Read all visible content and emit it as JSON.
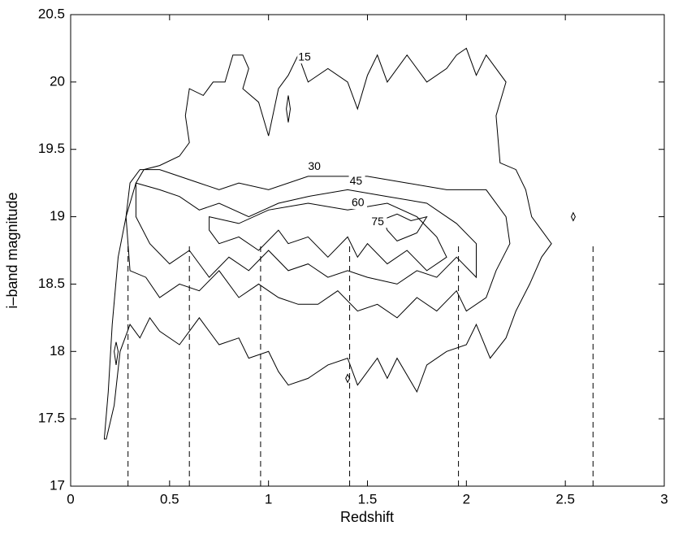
{
  "chart_data": {
    "type": "contour",
    "xlabel": "Redshift",
    "ylabel": "i–band magnitude",
    "xlim": [
      0,
      3
    ],
    "ylim": [
      17,
      20.5
    ],
    "xticks": [
      0,
      0.5,
      1,
      1.5,
      2,
      2.5,
      3
    ],
    "yticks": [
      17,
      17.5,
      18,
      18.5,
      19,
      19.5,
      20,
      20.5
    ],
    "color": "#000000",
    "contours": [
      {
        "level": 15,
        "label_x": 1.15,
        "label_y": 20.18,
        "paths": [
          {
            "x": [
              0.17,
              0.19,
              0.21,
              0.24,
              0.28,
              0.33,
              0.37,
              0.45,
              0.55,
              0.6,
              0.58,
              0.6,
              0.67,
              0.72,
              0.78,
              0.82,
              0.87,
              0.9,
              0.87,
              0.95,
              1.0,
              1.05,
              1.1,
              1.15,
              1.2,
              1.3,
              1.4,
              1.45,
              1.5,
              1.55,
              1.6,
              1.7,
              1.8,
              1.9,
              1.95,
              2.0,
              2.05,
              2.1,
              2.2,
              2.15,
              2.17,
              2.25,
              2.3,
              2.33,
              2.38,
              2.43,
              2.38,
              2.32,
              2.25,
              2.2,
              2.12,
              2.05,
              2.0,
              1.9,
              1.8,
              1.75,
              1.65,
              1.6,
              1.55,
              1.45,
              1.4,
              1.3,
              1.2,
              1.1,
              1.05,
              1.0,
              0.9,
              0.85,
              0.75,
              0.65,
              0.55,
              0.45,
              0.4,
              0.35,
              0.3,
              0.25,
              0.22,
              0.18
            ],
            "y": [
              17.35,
              17.7,
              18.2,
              18.7,
              19.0,
              19.25,
              19.35,
              19.38,
              19.45,
              19.55,
              19.75,
              19.95,
              19.9,
              20.0,
              20.0,
              20.2,
              20.2,
              20.1,
              19.95,
              19.85,
              19.6,
              19.95,
              20.05,
              20.2,
              20.0,
              20.1,
              20.0,
              19.8,
              20.05,
              20.2,
              20.0,
              20.2,
              20.0,
              20.1,
              20.2,
              20.25,
              20.05,
              20.2,
              20.0,
              19.75,
              19.4,
              19.35,
              19.2,
              19.0,
              18.9,
              18.8,
              18.7,
              18.5,
              18.3,
              18.1,
              17.95,
              18.2,
              18.05,
              18.0,
              17.9,
              17.7,
              17.95,
              17.8,
              17.95,
              17.75,
              17.95,
              17.9,
              17.8,
              17.75,
              17.85,
              18.0,
              17.95,
              18.1,
              18.05,
              18.25,
              18.05,
              18.15,
              18.25,
              18.1,
              18.2,
              18.0,
              17.6,
              17.35
            ]
          },
          {
            "x": [
              1.1,
              1.11,
              1.1,
              1.09
            ],
            "y": [
              19.9,
              19.8,
              19.7,
              19.8
            ]
          },
          {
            "x": [
              2.53,
              2.54,
              2.55,
              2.54
            ],
            "y": [
              19.0,
              19.03,
              19.0,
              18.97
            ]
          },
          {
            "x": [
              0.22,
              0.23,
              0.24,
              0.23
            ],
            "y": [
              18.0,
              18.07,
              18.0,
              17.9
            ]
          },
          {
            "x": [
              1.39,
              1.4,
              1.41,
              1.4
            ],
            "y": [
              17.8,
              17.83,
              17.8,
              17.77
            ]
          }
        ]
      },
      {
        "level": 30,
        "label_x": 1.2,
        "label_y": 19.37,
        "paths": [
          {
            "x": [
              0.3,
              0.35,
              0.45,
              0.55,
              0.65,
              0.75,
              0.85,
              1.0,
              1.2,
              1.35,
              1.5,
              1.7,
              1.9,
              2.1,
              2.2,
              2.22,
              2.15,
              2.1,
              2.0,
              1.95,
              1.85,
              1.75,
              1.65,
              1.55,
              1.45,
              1.35,
              1.25,
              1.15,
              1.05,
              0.95,
              0.85,
              0.75,
              0.65,
              0.55,
              0.45,
              0.38,
              0.3,
              0.28
            ],
            "y": [
              19.25,
              19.35,
              19.35,
              19.3,
              19.25,
              19.2,
              19.25,
              19.2,
              19.3,
              19.3,
              19.3,
              19.25,
              19.2,
              19.2,
              19.0,
              18.8,
              18.6,
              18.4,
              18.3,
              18.45,
              18.3,
              18.4,
              18.25,
              18.35,
              18.3,
              18.45,
              18.35,
              18.35,
              18.4,
              18.5,
              18.4,
              18.6,
              18.45,
              18.5,
              18.4,
              18.55,
              18.6,
              19.0
            ]
          }
        ]
      },
      {
        "level": 45,
        "label_x": 1.41,
        "label_y": 19.26,
        "paths": [
          {
            "x": [
              0.33,
              0.45,
              0.55,
              0.65,
              0.75,
              0.9,
              1.05,
              1.2,
              1.4,
              1.6,
              1.8,
              1.95,
              2.05,
              2.05,
              1.95,
              1.85,
              1.75,
              1.65,
              1.5,
              1.4,
              1.3,
              1.2,
              1.1,
              1.0,
              0.9,
              0.8,
              0.7,
              0.6,
              0.5,
              0.4,
              0.33
            ],
            "y": [
              19.25,
              19.2,
              19.15,
              19.05,
              19.1,
              19.0,
              19.1,
              19.15,
              19.2,
              19.15,
              19.1,
              18.95,
              18.8,
              18.55,
              18.7,
              18.55,
              18.6,
              18.5,
              18.55,
              18.6,
              18.55,
              18.65,
              18.6,
              18.75,
              18.6,
              18.7,
              18.55,
              18.75,
              18.65,
              18.8,
              19.0
            ]
          }
        ]
      },
      {
        "level": 60,
        "label_x": 1.42,
        "label_y": 19.1,
        "paths": [
          {
            "x": [
              0.7,
              0.85,
              1.0,
              1.2,
              1.4,
              1.6,
              1.75,
              1.85,
              1.9,
              1.8,
              1.7,
              1.6,
              1.5,
              1.45,
              1.4,
              1.3,
              1.2,
              1.1,
              1.05,
              0.95,
              0.85,
              0.75,
              0.7
            ],
            "y": [
              19.0,
              18.95,
              19.05,
              19.1,
              19.05,
              19.1,
              19.0,
              18.85,
              18.7,
              18.6,
              18.75,
              18.65,
              18.8,
              18.7,
              18.85,
              18.7,
              18.85,
              18.8,
              18.9,
              18.75,
              18.85,
              18.8,
              18.9
            ]
          }
        ]
      },
      {
        "level": 75,
        "label_x": 1.52,
        "label_y": 18.96,
        "paths": [
          {
            "x": [
              1.58,
              1.65,
              1.72,
              1.8,
              1.75,
              1.65,
              1.6,
              1.58
            ],
            "y": [
              18.98,
              19.02,
              18.97,
              19.0,
              18.88,
              18.82,
              18.9,
              18.98
            ]
          }
        ]
      }
    ],
    "vlines": {
      "x": [
        0.29,
        0.6,
        0.96,
        1.41,
        1.96,
        2.64
      ],
      "ymax": 18.8
    }
  }
}
